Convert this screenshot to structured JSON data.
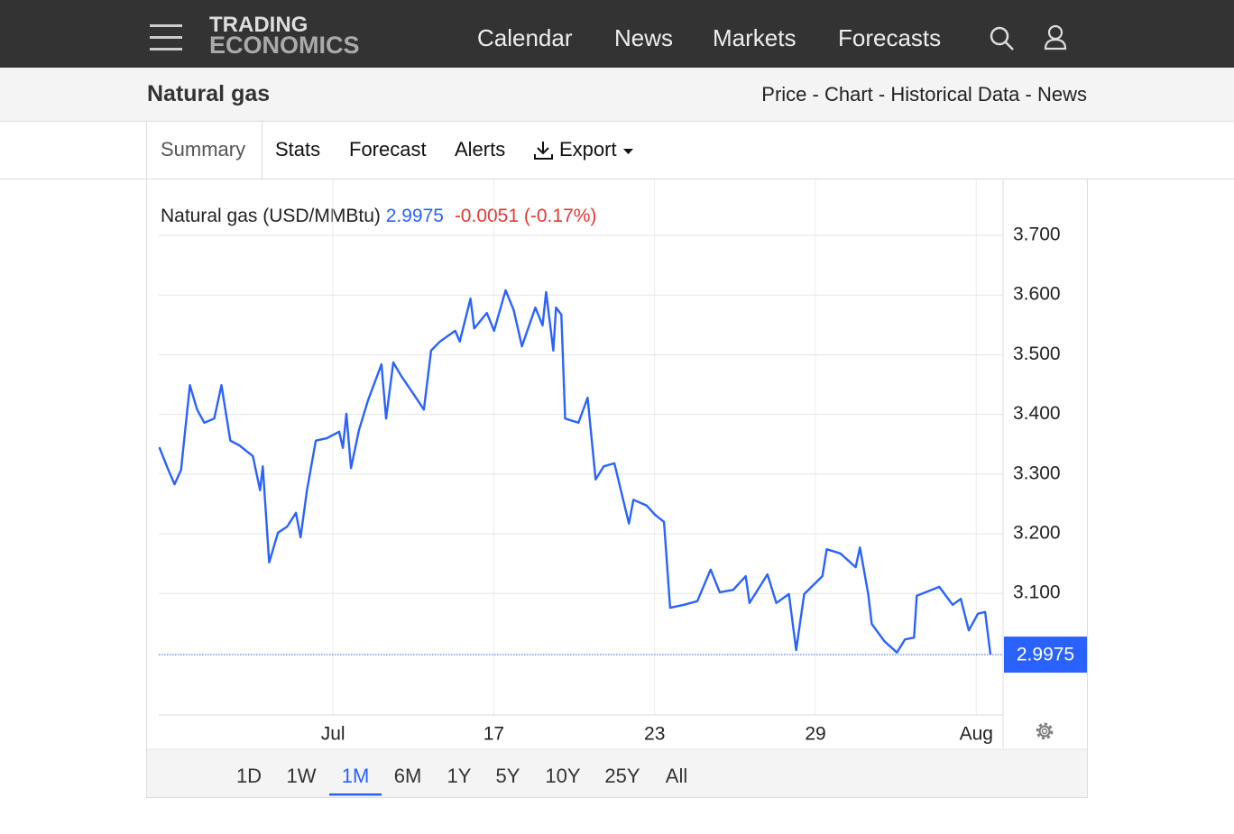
{
  "nav": {
    "logo": [
      "TRADING",
      "ECONOMICS"
    ],
    "menu": [
      "Calendar",
      "News",
      "Markets",
      "Forecasts"
    ]
  },
  "header": {
    "title": "Natural gas",
    "links": [
      "Price",
      "Chart",
      "Historical Data",
      "News"
    ],
    "separator": "-"
  },
  "tabs": [
    "Summary",
    "Stats",
    "Forecast",
    "Alerts",
    "Export"
  ],
  "chart_data": {
    "type": "line",
    "change": -0.0051,
    "change_percent": "(-0.17%)",
    "x": [
      -6.48,
      -6.17,
      -5.91,
      -5.67,
      -5.34,
      -5.07,
      -4.8,
      -4.43,
      -4.16,
      -3.83,
      -3.49,
      -2.99,
      -2.72,
      -2.62,
      -2.38,
      -2.05,
      -1.71,
      -1.38,
      -1.21,
      -0.97,
      -0.64,
      -0.23,
      0.23,
      0.37,
      0.5,
      0.67,
      0.97,
      1.31,
      1.81,
      1.98,
      2.25,
      2.55,
      3.05,
      3.39,
      3.66,
      3.99,
      4.56,
      4.73,
      5.13,
      5.27,
      5.74,
      6.01,
      6.44,
      6.74,
      7.05,
      7.55,
      7.82,
      7.95,
      8.22,
      8.32,
      8.52,
      8.66,
      9.16,
      9.5,
      9.8,
      10.1,
      10.5,
      11.04,
      11.21,
      11.71,
      12.01,
      12.35,
      12.58,
      13.09,
      13.59,
      14.09,
      14.43,
      14.93,
      15.4,
      15.54,
      16.21,
      16.54,
      17.01,
      17.28,
      17.58,
      18.26,
      18.42,
      18.93,
      19.5,
      19.66,
      19.97,
      20.1,
      20.57,
      21.04,
      21.34,
      21.68,
      21.78,
      22.62,
      23.12,
      23.42,
      23.72,
      24.06,
      24.33,
      24.53
    ],
    "series": [
      {
        "name": "Natural gas (USD/MMBtu)",
        "color": "#2962ff",
        "values": [
          3.345,
          3.31,
          3.283,
          3.307,
          3.449,
          3.408,
          3.386,
          3.393,
          3.449,
          3.356,
          3.348,
          3.33,
          3.273,
          3.313,
          3.152,
          3.202,
          3.212,
          3.235,
          3.194,
          3.273,
          3.356,
          3.36,
          3.371,
          3.344,
          3.401,
          3.31,
          3.374,
          3.424,
          3.484,
          3.393,
          3.487,
          3.464,
          3.431,
          3.408,
          3.507,
          3.522,
          3.54,
          3.522,
          3.594,
          3.544,
          3.57,
          3.54,
          3.608,
          3.575,
          3.514,
          3.579,
          3.549,
          3.605,
          3.507,
          3.579,
          3.567,
          3.393,
          3.386,
          3.428,
          3.291,
          3.313,
          3.318,
          3.217,
          3.257,
          3.247,
          3.232,
          3.22,
          3.076,
          3.081,
          3.087,
          3.14,
          3.102,
          3.106,
          3.129,
          3.084,
          3.132,
          3.084,
          3.099,
          3.005,
          3.099,
          3.129,
          3.174,
          3.167,
          3.144,
          3.177,
          3.099,
          3.049,
          3.02,
          3.001,
          3.023,
          3.026,
          3.096,
          3.111,
          3.081,
          3.091,
          3.038,
          3.066,
          3.069,
          2.9975
        ]
      }
    ],
    "xlim": [
      -6.5,
      25
    ],
    "xticks": [
      {
        "value": 0,
        "label": "Jul"
      },
      {
        "value": 6,
        "label": "17"
      },
      {
        "value": 12,
        "label": "23"
      },
      {
        "value": 18,
        "label": "29"
      },
      {
        "value": 24,
        "label": "Aug"
      }
    ],
    "ylim": [
      2.9,
      3.8
    ],
    "yticks": [
      {
        "value": 3.1,
        "label": "3.100"
      },
      {
        "value": 3.2,
        "label": "3.200"
      },
      {
        "value": 3.3,
        "label": "3.300"
      },
      {
        "value": 3.4,
        "label": "3.400"
      },
      {
        "value": 3.5,
        "label": "3.500"
      },
      {
        "value": 3.6,
        "label": "3.600"
      },
      {
        "value": 3.7,
        "label": "3.700"
      }
    ],
    "grid": true,
    "change_color": "#e53935"
  },
  "ranges": [
    "1D",
    "1W",
    "1M",
    "6M",
    "1Y",
    "5Y",
    "10Y",
    "25Y",
    "All"
  ],
  "selected_range": 2
}
